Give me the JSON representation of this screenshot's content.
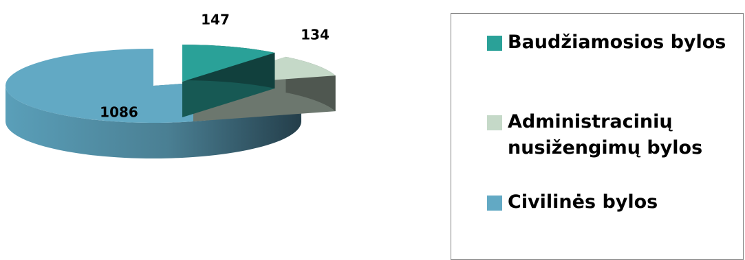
{
  "chart_data": {
    "type": "pie",
    "categories": [
      "Baudžiamosios bylos",
      "Administracinių nusižengimų bylos",
      "Civilinės bylos"
    ],
    "values": [
      147,
      134,
      1086
    ],
    "data_labels": [
      "147",
      "134",
      "1086"
    ],
    "colors": {
      "Baudžiamosios bylos": "#2aa198",
      "Administracinių nusižengimų bylos": "#c5d9c8",
      "Civilinės bylos": "#62a9c4"
    },
    "style": "3d-exploded",
    "legend_position": "right",
    "title": ""
  }
}
